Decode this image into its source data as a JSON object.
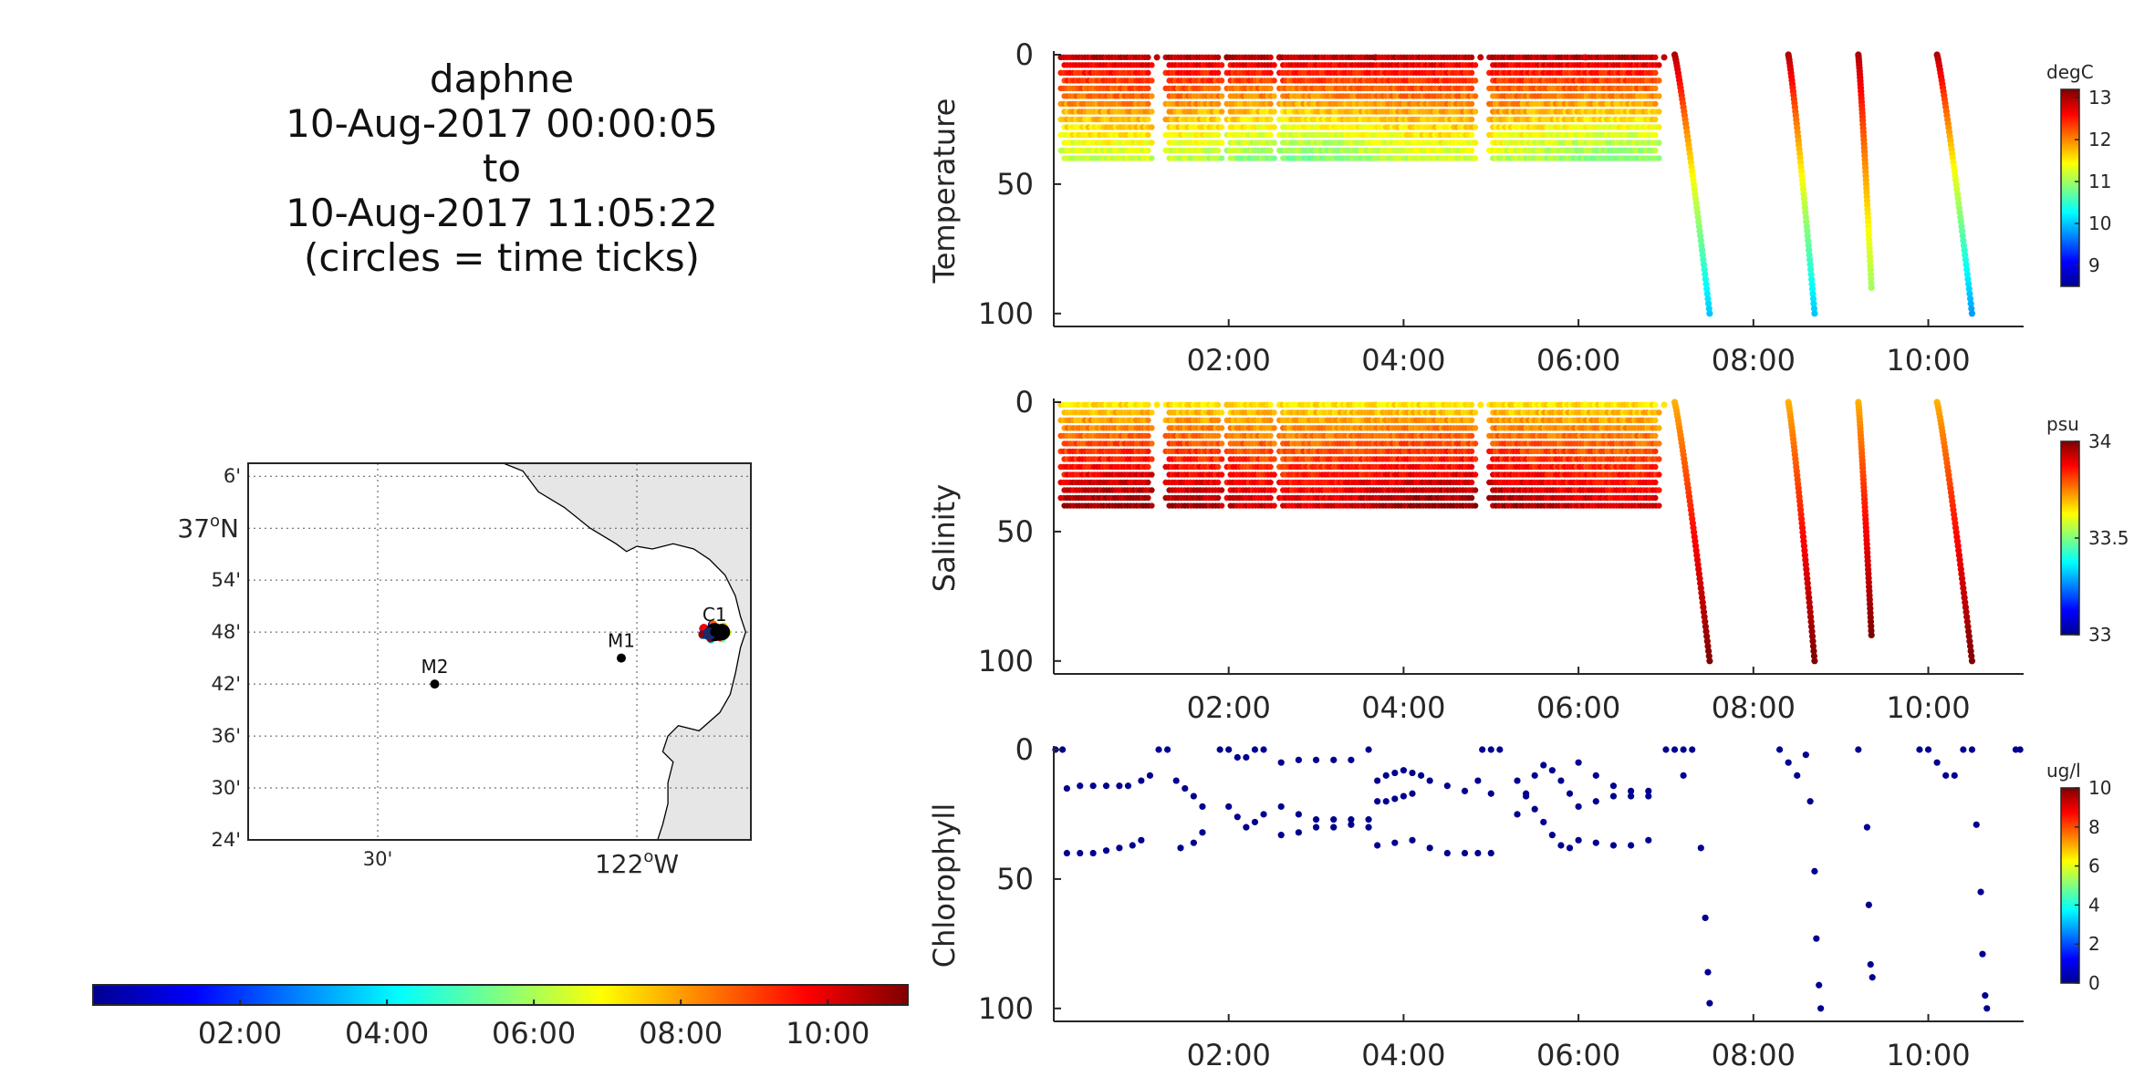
{
  "title": {
    "lines": [
      "daphne",
      "10-Aug-2017 00:00:05",
      "to",
      "10-Aug-2017 11:05:22",
      "(circles = time ticks)"
    ]
  },
  "colors": {
    "land": "#e6e6e6",
    "station_marker": "#000000",
    "chl_points": "#00008f",
    "jet": [
      "#00008f",
      "#0000ff",
      "#0080ff",
      "#00ffff",
      "#80ff80",
      "#ffff00",
      "#ff8000",
      "#ff0000",
      "#800000"
    ]
  },
  "time_colorbar": {
    "ticks": [
      "02:00",
      "04:00",
      "06:00",
      "08:00",
      "10:00"
    ],
    "tick_hours": [
      2,
      4,
      6,
      8,
      10
    ],
    "range_hours": [
      0,
      11.09
    ]
  },
  "map": {
    "lat_ticks": [
      "6'",
      "37°N",
      "54'",
      "48'",
      "42'",
      "36'",
      "30'",
      "24'"
    ],
    "lon_ticks": [
      "30'",
      "122°W"
    ],
    "lat_big_label": {
      "deg": "37",
      "suffix": "N"
    },
    "lon_big_label": {
      "deg": "122",
      "suffix": "W"
    },
    "stations": [
      {
        "name": "M2",
        "lat": 36.7,
        "lon": -122.39
      },
      {
        "name": "M1",
        "lat": 36.75,
        "lon": -122.03
      },
      {
        "name": "C1",
        "lat": 36.8,
        "lon": -121.85
      }
    ],
    "track_lat": 36.8,
    "track_lon": -121.85
  },
  "chart_data": [
    {
      "type": "scatter",
      "ylabel": "Temperature",
      "colorbar_unit": "degC",
      "colorbar_ticks": [
        "13",
        "12",
        "11",
        "10",
        "9"
      ],
      "colorbar_values": [
        13,
        12,
        11,
        10,
        9
      ],
      "clim": [
        8.5,
        13.2
      ],
      "ylim": [
        0,
        105
      ],
      "y_reversed": true,
      "yticks": [
        "0",
        "50",
        "100"
      ],
      "xticks": [
        "02:00",
        "04:00",
        "06:00",
        "08:00",
        "10:00"
      ],
      "xlim_hours": [
        0,
        11.09
      ],
      "yo_segments": [
        [
          0.1,
          1.1
        ],
        [
          1.3,
          1.9
        ],
        [
          2.0,
          2.5
        ],
        [
          2.6,
          3.6
        ],
        [
          3.6,
          4.8
        ],
        [
          5.0,
          6.0
        ],
        [
          6.0,
          6.9
        ]
      ],
      "surface_value": 12.9,
      "deep_value": 11.0,
      "profiles": [
        {
          "t_start": 7.1,
          "t_end": 7.5,
          "max_depth": 100,
          "surface": 13.0,
          "bottom": 10.0
        },
        {
          "t_start": 8.4,
          "t_end": 8.7,
          "max_depth": 100,
          "surface": 13.0,
          "bottom": 10.0
        },
        {
          "t_start": 9.2,
          "t_end": 9.35,
          "max_depth": 90,
          "surface": 13.0,
          "bottom": 11.0
        },
        {
          "t_start": 10.1,
          "t_end": 10.5,
          "max_depth": 100,
          "surface": 13.0,
          "bottom": 9.8
        }
      ]
    },
    {
      "type": "scatter",
      "ylabel": "Salinity",
      "colorbar_unit": "psu",
      "colorbar_ticks": [
        "34",
        "33.5",
        "33"
      ],
      "colorbar_values": [
        34,
        33.5,
        33
      ],
      "clim": [
        33.0,
        34.0
      ],
      "ylim": [
        0,
        105
      ],
      "y_reversed": true,
      "yticks": [
        "0",
        "50",
        "100"
      ],
      "xticks": [
        "02:00",
        "04:00",
        "06:00",
        "08:00",
        "10:00"
      ],
      "xlim_hours": [
        0,
        11.09
      ],
      "yo_segments": [
        [
          0.1,
          1.1
        ],
        [
          1.3,
          1.9
        ],
        [
          2.0,
          2.5
        ],
        [
          2.6,
          3.6
        ],
        [
          3.6,
          4.8
        ],
        [
          5.0,
          6.0
        ],
        [
          6.0,
          6.9
        ]
      ],
      "surface_value": 33.65,
      "deep_value": 33.95,
      "profiles": [
        {
          "t_start": 7.1,
          "t_end": 7.5,
          "max_depth": 100,
          "surface": 33.7,
          "bottom": 34.0
        },
        {
          "t_start": 8.4,
          "t_end": 8.7,
          "max_depth": 100,
          "surface": 33.7,
          "bottom": 34.0
        },
        {
          "t_start": 9.2,
          "t_end": 9.35,
          "max_depth": 90,
          "surface": 33.7,
          "bottom": 34.0
        },
        {
          "t_start": 10.1,
          "t_end": 10.5,
          "max_depth": 100,
          "surface": 33.7,
          "bottom": 34.0
        }
      ]
    },
    {
      "type": "scatter",
      "ylabel": "Chlorophyll",
      "colorbar_unit": "ug/l",
      "colorbar_ticks": [
        "10",
        "8",
        "6",
        "4",
        "2",
        "0"
      ],
      "colorbar_values": [
        10,
        8,
        6,
        4,
        2,
        0
      ],
      "clim": [
        0,
        10
      ],
      "ylim": [
        0,
        105
      ],
      "y_reversed": true,
      "yticks": [
        "0",
        "50",
        "100"
      ],
      "xticks": [
        "02:00",
        "04:00",
        "06:00",
        "08:00",
        "10:00"
      ],
      "xlim_hours": [
        0,
        11.09
      ],
      "points": [
        [
          0.02,
          0
        ],
        [
          0.1,
          0
        ],
        [
          0.15,
          15
        ],
        [
          0.3,
          14
        ],
        [
          0.45,
          14
        ],
        [
          0.6,
          14
        ],
        [
          0.75,
          14
        ],
        [
          0.85,
          14
        ],
        [
          1.0,
          12
        ],
        [
          1.1,
          10
        ],
        [
          0.15,
          40
        ],
        [
          0.3,
          40
        ],
        [
          0.45,
          40
        ],
        [
          0.6,
          39
        ],
        [
          0.75,
          38
        ],
        [
          0.9,
          37
        ],
        [
          1.0,
          35
        ],
        [
          1.2,
          0
        ],
        [
          1.3,
          0
        ],
        [
          1.4,
          12
        ],
        [
          1.5,
          15
        ],
        [
          1.6,
          18
        ],
        [
          1.7,
          22
        ],
        [
          1.45,
          38
        ],
        [
          1.6,
          36
        ],
        [
          1.7,
          32
        ],
        [
          1.9,
          0
        ],
        [
          2.0,
          0
        ],
        [
          2.1,
          3
        ],
        [
          2.2,
          3
        ],
        [
          2.3,
          0
        ],
        [
          2.4,
          0
        ],
        [
          2.0,
          22
        ],
        [
          2.1,
          26
        ],
        [
          2.2,
          30
        ],
        [
          2.3,
          28
        ],
        [
          2.4,
          25
        ],
        [
          2.6,
          5
        ],
        [
          2.8,
          4
        ],
        [
          3.0,
          4
        ],
        [
          3.2,
          4
        ],
        [
          3.4,
          4
        ],
        [
          3.6,
          0
        ],
        [
          2.6,
          22
        ],
        [
          2.8,
          25
        ],
        [
          3.0,
          27
        ],
        [
          3.2,
          27
        ],
        [
          3.4,
          27
        ],
        [
          3.6,
          27
        ],
        [
          2.6,
          33
        ],
        [
          2.8,
          32
        ],
        [
          3.0,
          30
        ],
        [
          3.2,
          30
        ],
        [
          3.4,
          29
        ],
        [
          3.6,
          30
        ],
        [
          3.7,
          12
        ],
        [
          3.8,
          10
        ],
        [
          3.9,
          9
        ],
        [
          4.0,
          8
        ],
        [
          4.1,
          9
        ],
        [
          4.2,
          10
        ],
        [
          3.7,
          20
        ],
        [
          3.8,
          20
        ],
        [
          3.9,
          19
        ],
        [
          4.0,
          18
        ],
        [
          4.1,
          17
        ],
        [
          4.3,
          12
        ],
        [
          4.5,
          14
        ],
        [
          4.7,
          16
        ],
        [
          3.7,
          37
        ],
        [
          3.9,
          36
        ],
        [
          4.1,
          35
        ],
        [
          4.3,
          38
        ],
        [
          4.5,
          40
        ],
        [
          4.7,
          40
        ],
        [
          4.9,
          0
        ],
        [
          5.0,
          0
        ],
        [
          4.85,
          12
        ],
        [
          5.0,
          17
        ],
        [
          5.1,
          0
        ],
        [
          4.85,
          40
        ],
        [
          5.0,
          40
        ],
        [
          5.3,
          25
        ],
        [
          5.4,
          18
        ],
        [
          5.5,
          10
        ],
        [
          5.6,
          6
        ],
        [
          5.7,
          8
        ],
        [
          5.8,
          12
        ],
        [
          5.9,
          17
        ],
        [
          6.0,
          22
        ],
        [
          5.3,
          12
        ],
        [
          5.4,
          17
        ],
        [
          5.5,
          23
        ],
        [
          5.6,
          28
        ],
        [
          5.7,
          33
        ],
        [
          5.8,
          37
        ],
        [
          5.9,
          38
        ],
        [
          6.0,
          5
        ],
        [
          6.2,
          10
        ],
        [
          6.4,
          14
        ],
        [
          6.6,
          16
        ],
        [
          6.8,
          18
        ],
        [
          6.2,
          20
        ],
        [
          6.4,
          18
        ],
        [
          6.6,
          18
        ],
        [
          6.8,
          16
        ],
        [
          6.0,
          35
        ],
        [
          6.2,
          36
        ],
        [
          6.4,
          37
        ],
        [
          6.6,
          37
        ],
        [
          6.8,
          35
        ],
        [
          7.0,
          0
        ],
        [
          7.1,
          0
        ],
        [
          7.2,
          0
        ],
        [
          7.3,
          0
        ],
        [
          7.2,
          10
        ],
        [
          7.4,
          38
        ],
        [
          7.45,
          65
        ],
        [
          7.48,
          86
        ],
        [
          7.5,
          98
        ],
        [
          8.3,
          0
        ],
        [
          8.4,
          5
        ],
        [
          8.5,
          10
        ],
        [
          8.6,
          2
        ],
        [
          8.65,
          20
        ],
        [
          8.7,
          47
        ],
        [
          8.72,
          73
        ],
        [
          8.75,
          91
        ],
        [
          8.77,
          100
        ],
        [
          9.2,
          0
        ],
        [
          9.3,
          30
        ],
        [
          9.32,
          60
        ],
        [
          9.34,
          83
        ],
        [
          9.36,
          88
        ],
        [
          9.9,
          0
        ],
        [
          10.0,
          0
        ],
        [
          10.1,
          5
        ],
        [
          10.2,
          10
        ],
        [
          10.3,
          10
        ],
        [
          10.4,
          0
        ],
        [
          10.5,
          0
        ],
        [
          10.55,
          29
        ],
        [
          10.6,
          55
        ],
        [
          10.62,
          79
        ],
        [
          10.65,
          95
        ],
        [
          10.67,
          100
        ],
        [
          11.0,
          0
        ],
        [
          11.05,
          0
        ]
      ]
    }
  ]
}
